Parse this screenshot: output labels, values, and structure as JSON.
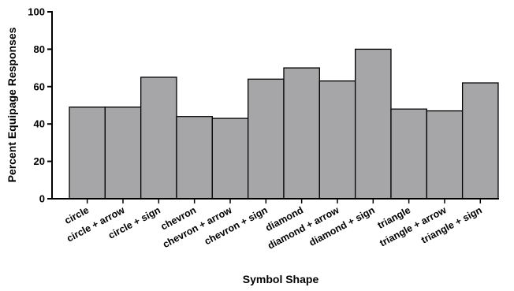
{
  "chart_data": {
    "type": "bar",
    "categories": [
      "circle",
      "circle + arrow",
      "circle + sign",
      "chevron",
      "chevron + arrow",
      "chevron + sign",
      "diamond",
      "diamond + arrow",
      "diamond + sign",
      "triangle",
      "triangle + arrow",
      "triangle + sign"
    ],
    "values": [
      49,
      49,
      65,
      44,
      43,
      64,
      70,
      63,
      80,
      48,
      47,
      62
    ],
    "title": "",
    "xlabel": "Symbol Shape",
    "ylabel": "Percent Equipage Responses",
    "ylim": [
      0,
      100
    ],
    "yticks": [
      "0",
      "20",
      "40",
      "60",
      "80",
      "100"
    ],
    "grid": false,
    "legend": "none",
    "bar_color": "#a6a6a8",
    "bar_edge_color": "#000000"
  }
}
